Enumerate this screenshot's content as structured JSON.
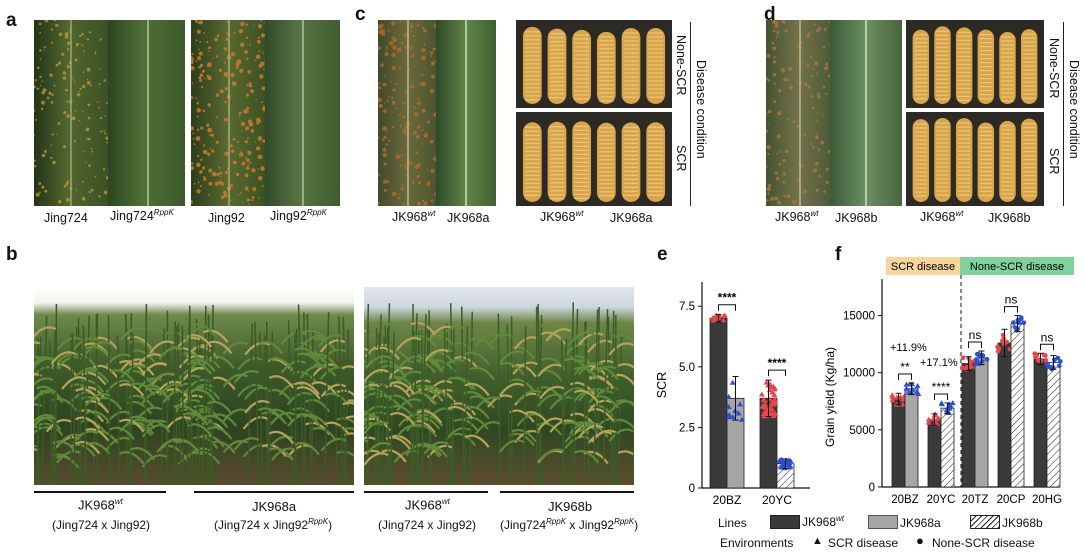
{
  "panels": {
    "a": {
      "label": "a",
      "captions": [
        "Jing724",
        "Jing724",
        "Jing92",
        "Jing92"
      ],
      "sups": [
        "",
        "RppK",
        "",
        "RppK"
      ]
    },
    "c": {
      "label": "c",
      "leaf_captions": [
        "JK968",
        "JK968a"
      ],
      "leaf_sup": "wt",
      "ear_captions": [
        "JK968",
        "JK968a"
      ],
      "ear_sup": "wt",
      "row_labels": [
        "None-SCR",
        "SCR"
      ],
      "side_label": "Disease condition"
    },
    "d": {
      "label": "d",
      "leaf_captions": [
        "JK968",
        "JK968b"
      ],
      "leaf_sup": "wt",
      "ear_captions": [
        "JK968",
        "JK968b"
      ],
      "ear_sup": "wt",
      "row_labels": [
        "None-SCR",
        "SCR"
      ],
      "side_label": "Disease condition"
    },
    "b": {
      "label": "b",
      "groups": [
        {
          "name": "JK968",
          "sup": "wt",
          "cross": "(Jing724 x Jing92)"
        },
        {
          "name": "JK968a",
          "sup": "",
          "cross_a": "(Jing724 x Jing92",
          "cross_sup": "RppK",
          "cross_b": ")"
        },
        {
          "name": "JK968",
          "sup": "wt",
          "cross": "(Jing724 x Jing92)"
        },
        {
          "name": "JK968b",
          "sup": "",
          "cross_a": "(Jing724",
          "cross_sup1": "RppK",
          "cross_mid": " x Jing92",
          "cross_sup2": "RppK",
          "cross_b": ")"
        }
      ]
    },
    "e": {
      "label": "e"
    },
    "f": {
      "label": "f",
      "region_scr": "SCR disease",
      "region_none": "None-SCR disease",
      "pct1": "+11.9%",
      "pct2": "+17.1%"
    }
  },
  "legend": {
    "lines_label": "Lines",
    "items": [
      "JK968",
      "JK968a",
      "JK968b"
    ],
    "item_sup": "wt",
    "env_label": "Environments",
    "env_items": [
      "SCR disease",
      "None-SCR disease"
    ]
  },
  "colors": {
    "dark": "#3a3a3a",
    "gray": "#a6a6a6",
    "red": "#e8464c",
    "blue": "#2b4fd6",
    "scr_bg": "#f6d49a",
    "none_bg": "#7fd29c"
  },
  "chart_data": [
    {
      "type": "bar",
      "ylabel": "SCR",
      "ylim": [
        0,
        8.5
      ],
      "yticks": [
        0,
        2.5,
        5.0,
        7.5
      ],
      "categories": [
        "20BZ",
        "20YC"
      ],
      "series": [
        {
          "name": "JK968",
          "values": [
            7.0,
            3.7
          ],
          "err": [
            0.15,
            0.75
          ]
        },
        {
          "name": "JK968a",
          "values": [
            3.7,
            1.0
          ],
          "err": [
            0.9,
            0.2
          ]
        }
      ],
      "annotations": [
        "****",
        "****"
      ]
    },
    {
      "type": "bar",
      "ylabel": "Grain yield (Kg/ha)",
      "ylim": [
        0,
        17500
      ],
      "yticks": [
        0,
        5000,
        10000,
        15000
      ],
      "categories": [
        "20BZ",
        "20YC",
        "20TZ",
        "20CP",
        "20HG"
      ],
      "series": [
        {
          "name": "JK968",
          "values": [
            7700,
            5900,
            10800,
            12600,
            11200
          ],
          "err": [
            500,
            500,
            600,
            1200,
            500
          ]
        },
        {
          "name": "JK968a/b",
          "values": [
            8600,
            6900,
            11300,
            14300,
            10900
          ],
          "err": [
            500,
            450,
            600,
            700,
            600
          ]
        }
      ],
      "annotations": [
        "**",
        "****",
        "ns",
        "ns",
        "ns"
      ]
    }
  ]
}
